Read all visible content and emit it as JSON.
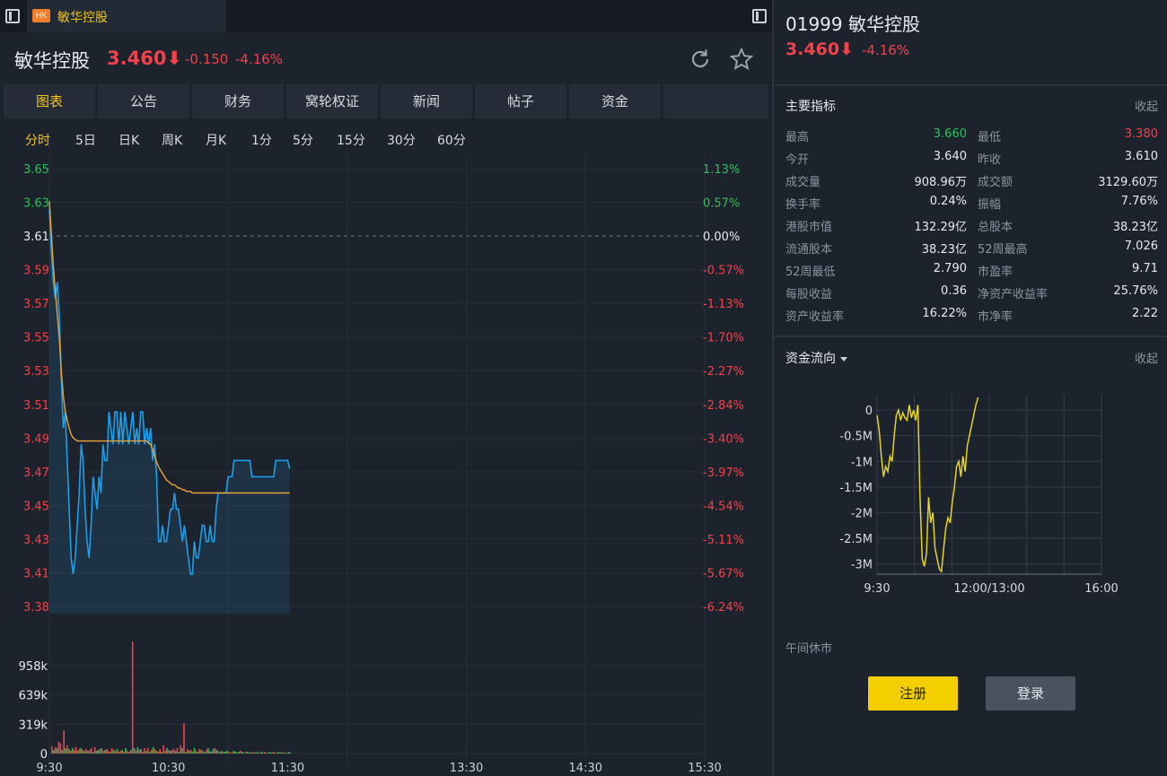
{
  "tab": {
    "badge": "HK",
    "title": "敏华控股"
  },
  "header": {
    "name": "敏华控股",
    "price": "3.460⬇",
    "change": "-0.150",
    "change_pct": "-4.16%"
  },
  "colors": {
    "down": "#f0424b",
    "up": "#2fc05a",
    "accent": "#f3c321",
    "price_line": "#1e9de8",
    "avg_line": "#e8a33a",
    "flow_line": "#e5d22a"
  },
  "nav_tabs": [
    "图表",
    "公告",
    "财务",
    "窝轮权证",
    "新闻",
    "帖子",
    "资金"
  ],
  "periods": [
    "分时",
    "5日",
    "日K",
    "周K",
    "月K",
    "1分",
    "5分",
    "15分",
    "30分",
    "60分"
  ],
  "chart_data": [
    {
      "type": "line",
      "x_ticks": [
        "9:30",
        "10:30",
        "11:30",
        "13:30",
        "14:30",
        "15:30"
      ],
      "y_ticks_price": [
        "3.65",
        "3.63",
        "3.61",
        "3.59",
        "3.57",
        "3.55",
        "3.53",
        "3.51",
        "3.49",
        "3.47",
        "3.45",
        "3.43",
        "3.41",
        "3.38"
      ],
      "y_ticks_pct": [
        "1.13%",
        "0.57%",
        "0.00%",
        "-0.57%",
        "-1.13%",
        "-1.70%",
        "-2.27%",
        "-2.84%",
        "-3.40%",
        "-3.97%",
        "-4.54%",
        "-5.11%",
        "-5.67%",
        "-6.24%"
      ],
      "ylim": [
        3.38,
        3.65
      ],
      "prev_close": 3.61,
      "series": [
        {
          "values": [
            3.625,
            3.6,
            3.58,
            3.57,
            3.58,
            3.56,
            3.52,
            3.49,
            3.5,
            3.47,
            3.44,
            3.41,
            3.4,
            3.41,
            3.43,
            3.45,
            3.48,
            3.47,
            3.44,
            3.42,
            3.41,
            3.43,
            3.46,
            3.45,
            3.44,
            3.46,
            3.45,
            3.48,
            3.47,
            3.47,
            3.5,
            3.49,
            3.48,
            3.5,
            3.5,
            3.48,
            3.5,
            3.48,
            3.5,
            3.49,
            3.48,
            3.49,
            3.5,
            3.48,
            3.49,
            3.48,
            3.5,
            3.5,
            3.48,
            3.49,
            3.48,
            3.49,
            3.47,
            3.48,
            3.46,
            3.42,
            3.42,
            3.43,
            3.42,
            3.42,
            3.43,
            3.44,
            3.44,
            3.45,
            3.44,
            3.44,
            3.43,
            3.42,
            3.43,
            3.42,
            3.41,
            3.4,
            3.4,
            3.42,
            3.41,
            3.41,
            3.42,
            3.43,
            3.43,
            3.42,
            3.42,
            3.43,
            3.42,
            3.42,
            3.44,
            3.45,
            3.45,
            3.45,
            3.45,
            3.45,
            3.46,
            3.46,
            3.46,
            3.47,
            3.47,
            3.47,
            3.47,
            3.47,
            3.47,
            3.47,
            3.47,
            3.47,
            3.46,
            3.46,
            3.46,
            3.46,
            3.46,
            3.46,
            3.46,
            3.46,
            3.46,
            3.46,
            3.46,
            3.46,
            3.47,
            3.47,
            3.47,
            3.47,
            3.47,
            3.47,
            3.47,
            3.465
          ]
        },
        {
          "values": [
            3.63,
            3.61,
            3.59,
            3.575,
            3.56,
            3.545,
            3.525,
            3.51,
            3.5,
            3.495,
            3.49,
            3.486,
            3.484,
            3.483,
            3.482,
            3.482,
            3.482,
            3.482,
            3.482,
            3.482,
            3.482,
            3.482,
            3.482,
            3.482,
            3.482,
            3.482,
            3.482,
            3.482,
            3.482,
            3.482,
            3.482,
            3.482,
            3.482,
            3.482,
            3.482,
            3.482,
            3.482,
            3.482,
            3.482,
            3.482,
            3.482,
            3.482,
            3.482,
            3.482,
            3.482,
            3.482,
            3.482,
            3.482,
            3.482,
            3.482,
            3.481,
            3.48,
            3.477,
            3.473,
            3.469,
            3.466,
            3.464,
            3.462,
            3.46,
            3.458,
            3.457,
            3.456,
            3.455,
            3.455,
            3.454,
            3.453,
            3.453,
            3.452,
            3.452,
            3.451,
            3.451,
            3.451,
            3.45,
            3.45,
            3.45,
            3.45,
            3.45,
            3.45,
            3.45,
            3.45,
            3.45,
            3.45,
            3.45,
            3.45,
            3.45,
            3.45,
            3.45,
            3.45,
            3.45,
            3.45,
            3.45,
            3.45,
            3.45,
            3.45,
            3.45,
            3.45,
            3.45,
            3.45,
            3.45,
            3.45,
            3.45,
            3.45,
            3.45,
            3.45,
            3.45,
            3.45,
            3.45,
            3.45,
            3.45,
            3.45,
            3.45,
            3.45,
            3.45,
            3.45,
            3.45,
            3.45,
            3.45,
            3.45,
            3.45,
            3.45,
            3.45,
            3.45
          ]
        }
      ]
    },
    {
      "type": "bar",
      "y_ticks": [
        "958k",
        "639k",
        "319k",
        "0"
      ],
      "ylim": [
        0,
        1250000
      ],
      "values": [
        80000,
        40000,
        70000,
        60000,
        130000,
        110000,
        40000,
        250000,
        60000,
        90000,
        50000,
        30000,
        60000,
        40000,
        70000,
        30000,
        50000,
        60000,
        40000,
        30000,
        50000,
        30000,
        40000,
        60000,
        20000,
        70000,
        30000,
        40000,
        50000,
        60000,
        30000,
        40000,
        50000,
        30000,
        20000,
        60000,
        40000,
        30000,
        50000,
        20000,
        30000,
        40000,
        20000,
        60000,
        30000,
        20000,
        40000,
        1220000,
        60000,
        30000,
        70000,
        40000,
        50000,
        20000,
        60000,
        30000,
        60000,
        20000,
        40000,
        70000,
        50000,
        30000,
        20000,
        50000,
        20000,
        90000,
        30000,
        60000,
        40000,
        30000,
        40000,
        50000,
        30000,
        60000,
        20000,
        90000,
        60000,
        330000,
        20000,
        50000,
        30000,
        40000,
        20000,
        60000,
        30000,
        20000,
        50000,
        40000,
        30000,
        20000,
        40000,
        60000,
        30000,
        20000,
        50000,
        60000,
        40000,
        30000,
        20000,
        30000,
        20000,
        20000,
        30000,
        20000,
        10000,
        20000,
        30000,
        20000,
        10000,
        20000,
        30000,
        20000,
        10000,
        20000,
        20000,
        10000,
        20000,
        10000,
        20000,
        10000,
        20000,
        10000,
        20000,
        10000,
        20000,
        10000,
        10000,
        20000,
        10000,
        20000,
        10000,
        10000,
        20000,
        10000,
        20000,
        10000,
        10000,
        10000,
        20000,
        10000
      ],
      "up_flags": [
        0,
        1,
        0,
        1,
        0,
        0,
        1,
        0,
        1,
        0,
        1,
        0,
        1,
        0,
        0,
        1,
        0,
        1,
        0,
        1,
        0,
        1,
        0,
        0,
        1,
        0,
        1,
        1,
        0,
        1,
        0,
        1,
        0,
        0,
        1,
        0,
        1,
        0,
        1,
        0,
        0,
        1,
        0,
        1,
        0,
        0,
        1,
        0,
        1,
        0,
        1,
        0,
        1,
        0,
        0,
        1,
        0,
        1,
        0,
        1,
        0,
        1,
        0,
        0,
        1,
        0,
        0,
        1,
        0,
        1,
        0,
        0,
        1,
        0,
        1,
        0,
        1,
        0,
        1,
        0,
        1,
        0,
        1,
        1,
        0,
        1,
        0,
        1,
        0,
        1,
        0,
        1,
        1,
        0,
        1,
        0,
        1,
        0,
        1,
        1,
        0,
        1,
        1,
        0,
        1,
        0,
        1,
        1,
        0,
        1,
        0,
        1,
        1,
        0,
        1,
        1,
        0,
        1,
        0,
        1,
        1,
        0,
        1,
        1,
        0,
        1,
        0,
        1,
        1,
        0,
        1,
        0,
        1,
        1,
        0,
        1,
        1,
        0,
        1,
        1
      ]
    },
    {
      "type": "line",
      "x_ticks": [
        "9:30",
        "12:00/13:00",
        "16:00"
      ],
      "y_ticks": [
        "0",
        "-0.5M",
        "-1M",
        "-1.5M",
        "-2M",
        "-2.5M",
        "-3M"
      ],
      "ylim": [
        -3.2,
        0.3
      ],
      "series": [
        {
          "values": [
            -0.1,
            -0.4,
            -0.9,
            -1.3,
            -1.1,
            -1.2,
            -0.9,
            -1.0,
            -0.5,
            -0.1,
            0.0,
            -0.2,
            -0.05,
            -0.15,
            -0.2,
            0.1,
            -0.15,
            0.0,
            -0.2,
            0.1,
            -1.7,
            -2.9,
            -3.05,
            -2.8,
            -1.7,
            -2.2,
            -2.0,
            -2.7,
            -2.9,
            -3.1,
            -3.15,
            -2.7,
            -2.3,
            -2.1,
            -2.2,
            -1.8,
            -1.5,
            -1.1,
            -1.0,
            -1.3,
            -0.9,
            -1.2,
            -0.7,
            -0.5,
            -0.3,
            -0.1,
            0.1,
            0.25
          ]
        }
      ]
    }
  ],
  "right": {
    "title": "01999 敏华控股",
    "price": "3.460⬇",
    "change_pct": "-4.16%",
    "indicators_title": "主要指标",
    "collapse_label": "收起",
    "indicators": [
      {
        "l1": "最高",
        "v1": "3.660",
        "c1": "#2fc05a",
        "l2": "最低",
        "v2": "3.380",
        "c2": "#f0424b"
      },
      {
        "l1": "今开",
        "v1": "3.640",
        "c1": "",
        "l2": "昨收",
        "v2": "3.610",
        "c2": ""
      },
      {
        "l1": "成交量",
        "v1": "908.96万",
        "c1": "",
        "l2": "成交额",
        "v2": "3129.60万",
        "c2": ""
      },
      {
        "l1": "换手率",
        "v1": "0.24%",
        "c1": "",
        "l2": "振幅",
        "v2": "7.76%",
        "c2": ""
      },
      {
        "l1": "港股市值",
        "v1": "132.29亿",
        "c1": "",
        "l2": "总股本",
        "v2": "38.23亿",
        "c2": ""
      },
      {
        "l1": "流通股本",
        "v1": "38.23亿",
        "c1": "",
        "l2": "52周最高",
        "v2": "7.026",
        "c2": ""
      },
      {
        "l1": "52周最低",
        "v1": "2.790",
        "c1": "",
        "l2": "市盈率",
        "v2": "9.71",
        "c2": ""
      },
      {
        "l1": "每股收益",
        "v1": "0.36",
        "c1": "",
        "l2": "净资产收益率",
        "v2": "25.76%",
        "c2": ""
      },
      {
        "l1": "资产收益率",
        "v1": "16.22%",
        "c1": "",
        "l2": "市净率",
        "v2": "2.22",
        "c2": ""
      }
    ],
    "flow_title": "资金流向",
    "flow_collapse": "收起",
    "lunch_text": "午间休市",
    "register_label": "注册",
    "login_label": "登录"
  }
}
